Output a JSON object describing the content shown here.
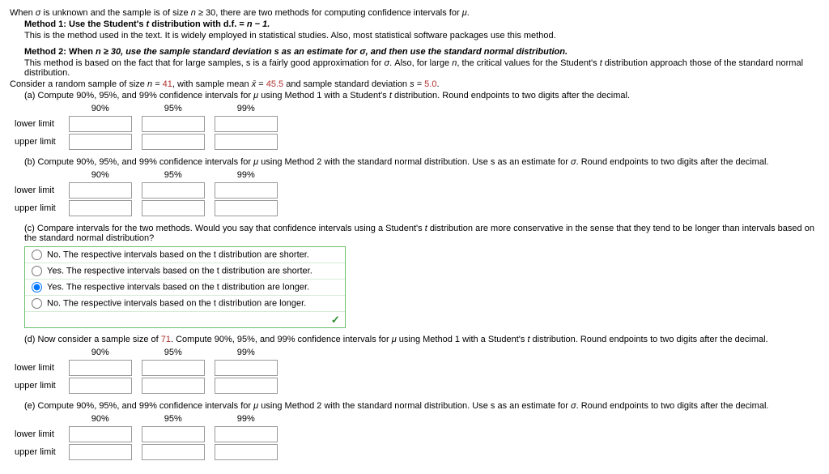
{
  "intro": {
    "l1_a": "When ",
    "sigma": "σ",
    "l1_b": " is unknown and the sample is of size ",
    "n": "n",
    "l1_c": " ≥ 30, there are two methods for computing confidence intervals for ",
    "mu": "μ",
    "period": "."
  },
  "m1": {
    "head_a": "Method 1: Use the Student's ",
    "t": "t",
    "head_b": " distribution with d.f. = ",
    "head_c": "n − 1.",
    "desc": "This is the method used in the text. It is widely employed in statistical studies. Also, most statistical software packages use this method."
  },
  "m2": {
    "head_a": "Method 2: When ",
    "head_b": "n ≥ 30, use the sample standard deviation s as an estimate for ",
    "head_c": "σ, and then use the standard normal distribution.",
    "desc_a": "This method is based on the fact that for large samples, s is a fairly good approximation for ",
    "sigma": "σ",
    "desc_b": ". Also, for large ",
    "n": "n",
    "desc_c": ", the critical values for the Student's ",
    "t": "t",
    "desc_d": " distribution approach those of the standard normal distribution."
  },
  "consider": {
    "a": "Consider a random sample of size ",
    "b": "n = ",
    "n_val": "41",
    "c": ", with sample mean ",
    "xbar": "x̄",
    "d": " = ",
    "xbar_val": "45.5",
    "e": " and sample standard deviation ",
    "f": "s = ",
    "s_val": "5.0",
    "g": "."
  },
  "cols": {
    "c90": "90%",
    "c95": "95%",
    "c99": "99%"
  },
  "rows": {
    "lower": "lower limit",
    "upper": "upper limit"
  },
  "a": {
    "text_a": "(a) Compute 90%, 95%, and 99% confidence intervals for ",
    "mu": "μ",
    "text_b": " using Method 1 with a Student's ",
    "t": "t",
    "text_c": " distribution. Round endpoints to two digits after the decimal."
  },
  "b": {
    "text_a": "(b) Compute 90%, 95%, and 99% confidence intervals for ",
    "mu": "μ",
    "text_b": " using Method 2 with the standard normal distribution. Use s as an estimate for ",
    "sigma": "σ",
    "text_c": ". Round endpoints to two digits after the decimal."
  },
  "c": {
    "text_a": "(c) Compare intervals for the two methods. Would you say that confidence intervals using a Student's ",
    "t": "t",
    "text_b": " distribution are more conservative in the sense that they tend to be longer than intervals based on the standard normal distribution?",
    "opt1": "No. The respective intervals based on the t distribution are shorter.",
    "opt2": "Yes. The respective intervals based on the t distribution are shorter.",
    "opt3": "Yes. The respective intervals based on the t distribution are longer.",
    "opt4": "No. The respective intervals based on the t distribution are longer.",
    "check": "✓"
  },
  "d": {
    "text_a": "(d) Now consider a sample size of ",
    "n_val": "71",
    "text_b": ". Compute 90%, 95%, and 99% confidence intervals for ",
    "mu": "μ",
    "text_c": " using Method 1 with a Student's ",
    "t": "t",
    "text_d": " distribution. Round endpoints to two digits after the decimal."
  },
  "e": {
    "text_a": "(e) Compute 90%, 95%, and 99% confidence intervals for ",
    "mu": "μ",
    "text_b": " using Method 2 with the standard normal distribution. Use s as an estimate for ",
    "sigma": "σ",
    "text_c": ". Round endpoints to two digits after the decimal."
  }
}
